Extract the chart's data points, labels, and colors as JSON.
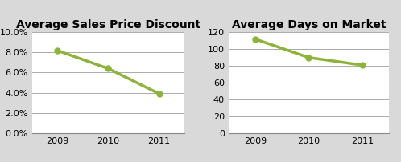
{
  "chart1": {
    "title": "Average Sales Price Discount",
    "years": [
      2009,
      2010,
      2011
    ],
    "values": [
      0.082,
      0.064,
      0.039
    ],
    "ylim": [
      0,
      0.1
    ],
    "yticks": [
      0.0,
      0.02,
      0.04,
      0.06,
      0.08,
      0.1
    ]
  },
  "chart2": {
    "title": "Average Days on Market",
    "years": [
      2009,
      2010,
      2011
    ],
    "values": [
      112,
      90,
      81
    ],
    "ylim": [
      0,
      120
    ],
    "yticks": [
      0,
      20,
      40,
      60,
      80,
      100,
      120
    ]
  },
  "line_color": "#8DB33A",
  "marker": "o",
  "marker_size": 6,
  "line_width": 2.5,
  "bg_color": "#D9D9D9",
  "plot_bg_color": "#FFFFFF",
  "grid_color": "#AAAAAA",
  "title_fontsize": 10,
  "tick_fontsize": 8,
  "title_fontweight": "bold"
}
